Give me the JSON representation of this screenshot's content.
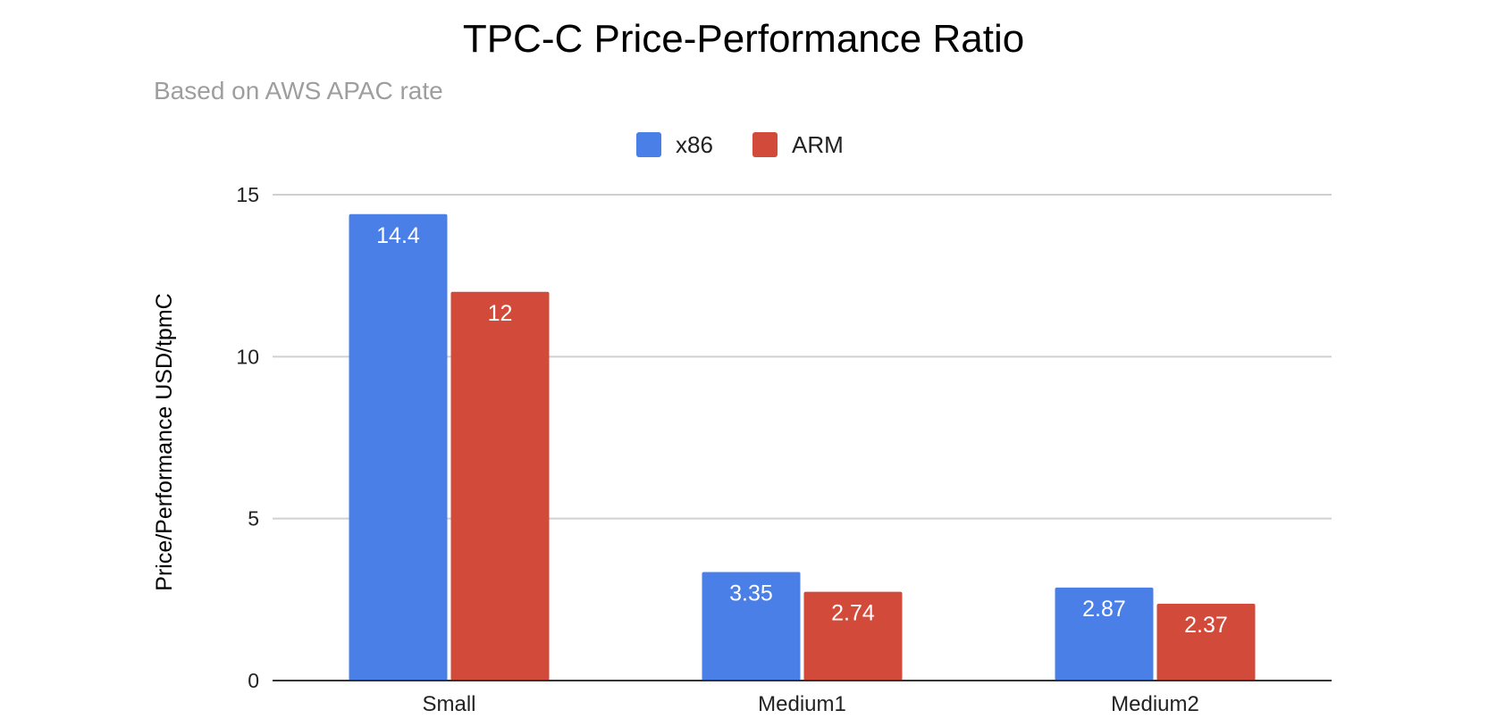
{
  "chart_data": {
    "type": "bar",
    "title": "TPC-C Price-Performance Ratio",
    "subtitle": "Based on AWS APAC rate",
    "xlabel": "",
    "ylabel": "Price/Performance USD/tpmC",
    "categories": [
      "Small",
      "Medium1",
      "Medium2"
    ],
    "series": [
      {
        "name": "x86",
        "color": "#4a7fe8",
        "values": [
          14.4,
          3.35,
          2.87
        ],
        "labels": [
          "14.4",
          "3.35",
          "2.87"
        ]
      },
      {
        "name": "ARM",
        "color": "#d24a3a",
        "values": [
          12,
          2.74,
          2.37
        ],
        "labels": [
          "12",
          "2.74",
          "2.37"
        ]
      }
    ],
    "ylim": [
      0,
      15
    ],
    "yticks": [
      0,
      5,
      10,
      15
    ],
    "ytick_labels": [
      "0",
      "5",
      "10",
      "15"
    ],
    "grid": true,
    "legend": "top-center"
  }
}
